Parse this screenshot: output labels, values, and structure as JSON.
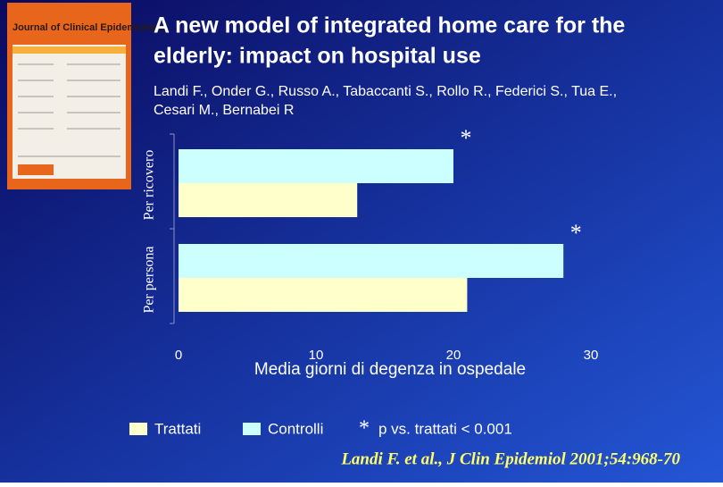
{
  "cover_title": "Journal of Clinical Epidemiology",
  "chart_data": {
    "type": "bar",
    "orientation": "horizontal",
    "title": [
      "A new model of integrated home care for the",
      "elderly: impact on hospital use"
    ],
    "subtitle": [
      "Landi F., Onder G., Russo A., Tabaccanti S., Rollo R., Federici S., Tua E.,",
      "Cesari M., Bernabei R"
    ],
    "categories": [
      "Per ricovero",
      "Per persona"
    ],
    "series": [
      {
        "name": "Trattati",
        "color": "#ffffcc",
        "values": [
          13,
          21
        ]
      },
      {
        "name": "Controlli",
        "color": "#ccffff",
        "values": [
          20,
          28
        ]
      }
    ],
    "x_label": "Media giorni di degenza in ospedale",
    "xlim": [
      0,
      30
    ],
    "xticks": [
      0,
      10,
      20,
      30
    ],
    "annotations": [
      "*",
      "*"
    ],
    "note_symbol": "*",
    "note": "p vs. trattati < 0.001",
    "citation": "Landi F. et al.,  J Clin Epidemiol  2001;54:968-70"
  }
}
